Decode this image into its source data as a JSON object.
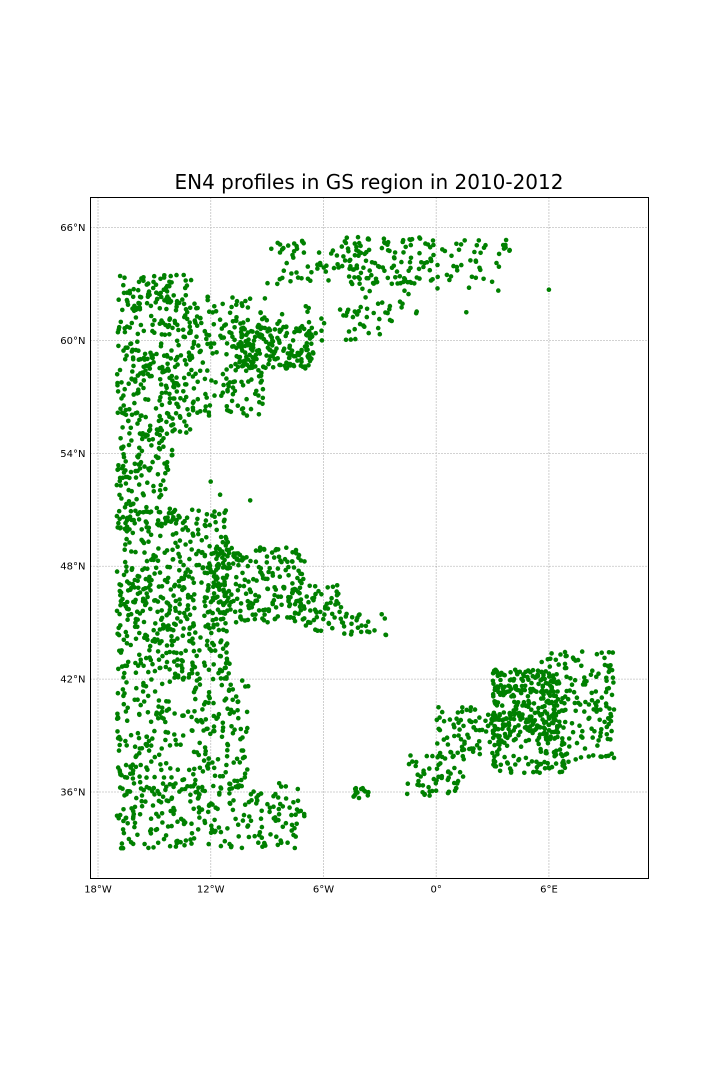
{
  "title": "EN4 profiles in GS region in 2010-2012",
  "map": {
    "projection": "platecarree",
    "lon_range": [
      -18.4,
      11.3
    ],
    "lat_range": [
      31.4,
      67.6
    ],
    "gridlines": true,
    "marker_color": "#008000",
    "lon_ticks": [
      {
        "value": -18,
        "label": "18°W"
      },
      {
        "value": -12,
        "label": "12°W"
      },
      {
        "value": -6,
        "label": "6°W"
      },
      {
        "value": 0,
        "label": "0°"
      },
      {
        "value": 6,
        "label": "6°E"
      }
    ],
    "lat_ticks": [
      {
        "value": 36,
        "label": "36°N"
      },
      {
        "value": 42,
        "label": "42°N"
      },
      {
        "value": 48,
        "label": "48°N"
      },
      {
        "value": 54,
        "label": "54°N"
      },
      {
        "value": 60,
        "label": "60°N"
      },
      {
        "value": 66,
        "label": "66°N"
      }
    ]
  },
  "chart_data": {
    "type": "scatter",
    "title": "EN4 profiles in GS region in 2010-2012",
    "xlabel": "",
    "ylabel": "",
    "xlim": [
      -18.4,
      11.3
    ],
    "ylim": [
      31.4,
      67.6
    ],
    "series": [
      {
        "color": "#008000",
        "clusters": [
          {
            "lon_range": [
              -17,
              -13
            ],
            "lat_range": [
              55,
              63.5
            ],
            "count": 330
          },
          {
            "lon_range": [
              -13,
              -9
            ],
            "lat_range": [
              56,
              62.5
            ],
            "count": 180
          },
          {
            "lon_range": [
              -10.5,
              -6.5
            ],
            "lat_range": [
              58.5,
              60.8
            ],
            "count": 170
          },
          {
            "lon_range": [
              -9,
              -3
            ],
            "lat_range": [
              60,
              62
            ],
            "count": 40
          },
          {
            "lon_range": [
              -9,
              -4
            ],
            "lat_range": [
              63,
              65.5
            ],
            "count": 60
          },
          {
            "lon_range": [
              -5,
              0
            ],
            "lat_range": [
              63,
              65.5
            ],
            "count": 110
          },
          {
            "lon_range": [
              0,
              4
            ],
            "lat_range": [
              62.5,
              65.5
            ],
            "count": 45
          },
          {
            "lon_range": [
              -4,
              -1
            ],
            "lat_range": [
              61,
              63
            ],
            "count": 20
          },
          {
            "lon_range": [
              -17,
              -14
            ],
            "lat_range": [
              50,
              55
            ],
            "count": 120
          },
          {
            "lon_range": [
              -17,
              -11
            ],
            "lat_range": [
              47.5,
              51
            ],
            "count": 180
          },
          {
            "lon_range": [
              -17,
              -11
            ],
            "lat_range": [
              42,
              47.5
            ],
            "count": 320
          },
          {
            "lon_range": [
              -12,
              -7
            ],
            "lat_range": [
              45,
              49
            ],
            "count": 200
          },
          {
            "lon_range": [
              -8,
              -5
            ],
            "lat_range": [
              44.5,
              47
            ],
            "count": 70
          },
          {
            "lon_range": [
              -5,
              -2.5
            ],
            "lat_range": [
              44.3,
              45.5
            ],
            "count": 25
          },
          {
            "lon_range": [
              -17,
              -10
            ],
            "lat_range": [
              36,
              42
            ],
            "count": 260
          },
          {
            "lon_range": [
              -17,
              -7
            ],
            "lat_range": [
              33,
              36.5
            ],
            "count": 230
          },
          {
            "lon_range": [
              -4.4,
              -3.5
            ],
            "lat_range": [
              35.6,
              36.2
            ],
            "count": 15
          },
          {
            "lon_range": [
              -1.6,
              1.5
            ],
            "lat_range": [
              35.8,
              38
            ],
            "count": 60
          },
          {
            "lon_range": [
              0,
              3.5
            ],
            "lat_range": [
              38,
              40.5
            ],
            "count": 80
          },
          {
            "lon_range": [
              3,
              6.5
            ],
            "lat_range": [
              39,
              42.5
            ],
            "count": 260
          },
          {
            "lon_range": [
              5.5,
              9.5
            ],
            "lat_range": [
              37.5,
              43.5
            ],
            "count": 180
          },
          {
            "lon_range": [
              3,
              7
            ],
            "lat_range": [
              37,
              39
            ],
            "count": 80
          }
        ],
        "outliers": [
          {
            "lon": 6.0,
            "lat": 62.7
          },
          {
            "lon": 1.6,
            "lat": 61.5
          },
          {
            "lon": -9.9,
            "lat": 51.5
          },
          {
            "lon": -12.0,
            "lat": 52.5
          },
          {
            "lon": -11.5,
            "lat": 51.8
          }
        ]
      }
    ]
  }
}
